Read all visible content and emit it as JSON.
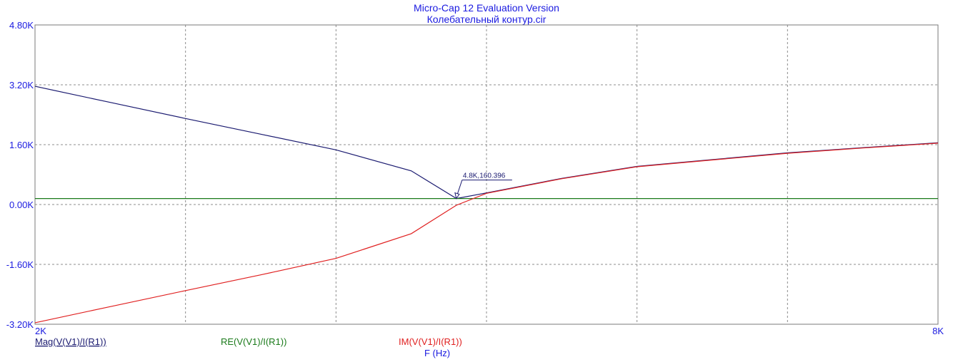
{
  "app_title": "Micro-Cap 12 Evaluation Version",
  "file_title": "Колебательный контур.cir",
  "chart_data": {
    "type": "line",
    "title": "Micro-Cap 12 Evaluation Version",
    "subtitle": "Колебательный контур.cir",
    "xlabel": "F (Hz)",
    "xlim": [
      2000,
      8000
    ],
    "ylim": [
      -3200,
      4800
    ],
    "grid": true,
    "y_ticks": [
      4800,
      3200,
      1600,
      0,
      -1600,
      -3200
    ],
    "y_tick_labels": [
      "4.80K",
      "3.20K",
      "1.60K",
      "0.00K",
      "-1.60K",
      "-3.20K"
    ],
    "x_tick_labels": [
      "2K",
      "8K"
    ],
    "x_grid_values": [
      3000,
      4000,
      5000,
      6000,
      7000
    ],
    "series": [
      {
        "name": "Mag(V(V1)/I(R1))",
        "color": "#1a1a70",
        "x": [
          2000,
          2500,
          3000,
          3500,
          4000,
          4500,
          4800,
          5000,
          5500,
          6000,
          6500,
          7000,
          7500,
          8000
        ],
        "y": [
          3160,
          2730,
          2300,
          1880,
          1460,
          900,
          160.396,
          310,
          700,
          1020,
          1200,
          1380,
          1520,
          1650
        ]
      },
      {
        "name": "RE(V(V1)/I(R1))",
        "color": "#1a7a1a",
        "x": [
          2000,
          8000
        ],
        "y": [
          160.396,
          160.396
        ]
      },
      {
        "name": "IM(V(V1)/I(R1))",
        "color": "#e02020",
        "x": [
          2000,
          2500,
          3000,
          3500,
          4000,
          4500,
          4800,
          5000,
          5500,
          6000,
          6500,
          7000,
          7500,
          8000
        ],
        "y": [
          -3160,
          -2730,
          -2300,
          -1880,
          -1440,
          -780,
          -20,
          300,
          690,
          1010,
          1190,
          1370,
          1510,
          1640
        ]
      }
    ],
    "annotation": {
      "text": "4.8K,160.396",
      "x": 4800,
      "y": 160.396
    }
  }
}
